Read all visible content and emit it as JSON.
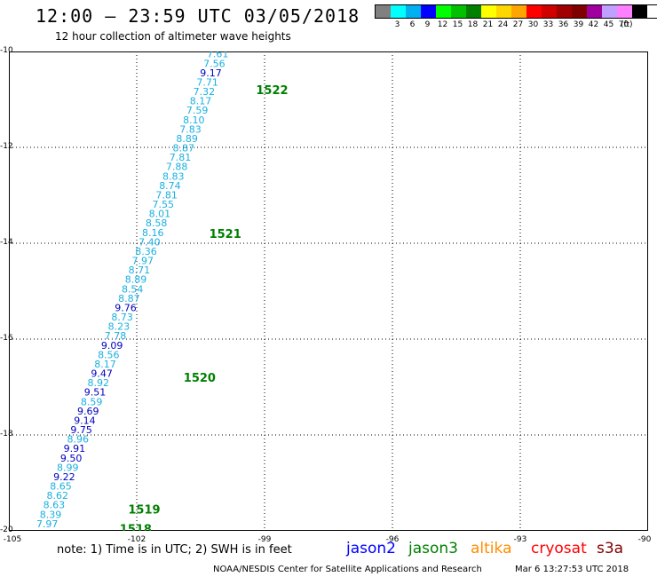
{
  "header": {
    "title": "12:00 – 23:59 UTC 03/05/2018",
    "subtitle": "12 hour collection of altimeter wave heights"
  },
  "color_scale": {
    "unit": "(ft)",
    "bins": [
      {
        "label": "",
        "color": "#808080"
      },
      {
        "label": "3",
        "color": "#00ffff"
      },
      {
        "label": "6",
        "color": "#00b0f0"
      },
      {
        "label": "9",
        "color": "#0000ff"
      },
      {
        "label": "12",
        "color": "#00ff00"
      },
      {
        "label": "15",
        "color": "#00c000"
      },
      {
        "label": "18",
        "color": "#008000"
      },
      {
        "label": "21",
        "color": "#ffff00"
      },
      {
        "label": "24",
        "color": "#ffd700"
      },
      {
        "label": "27",
        "color": "#ffa500"
      },
      {
        "label": "30",
        "color": "#ff0000"
      },
      {
        "label": "33",
        "color": "#d00000"
      },
      {
        "label": "36",
        "color": "#a00000"
      },
      {
        "label": "39",
        "color": "#800000"
      },
      {
        "label": "42",
        "color": "#a000a0"
      },
      {
        "label": "45",
        "color": "#c0a0ff"
      },
      {
        "label": "70",
        "color": "#ff80ff"
      },
      {
        "label": "",
        "color": "#000000"
      }
    ]
  },
  "map": {
    "lon_range": [
      -105,
      -90
    ],
    "lat_range": [
      -20,
      -10
    ],
    "lat_ticks": [
      {
        "value": -10,
        "label": "-10"
      },
      {
        "value": -12,
        "label": "-12"
      },
      {
        "value": -14,
        "label": "-14"
      },
      {
        "value": -16,
        "label": "-16"
      },
      {
        "value": -18,
        "label": "-18"
      },
      {
        "value": -20,
        "label": "-20"
      }
    ],
    "lon_ticks": [
      {
        "value": -105,
        "label": "-105"
      },
      {
        "value": -102,
        "label": "-102"
      },
      {
        "value": -99,
        "label": "-99"
      },
      {
        "value": -96,
        "label": "-96"
      },
      {
        "value": -93,
        "label": "-93"
      },
      {
        "value": -90,
        "label": "-90"
      }
    ],
    "track": {
      "start": {
        "lon": -100.1,
        "lat": -10.05
      },
      "end": {
        "lon": -104.1,
        "lat": -19.85
      },
      "values": [
        "7.61",
        "7.56",
        "9.17",
        "7.71",
        "7.32",
        "8.17",
        "7.59",
        "8.10",
        "7.83",
        "8.89",
        "8.87",
        "7.81",
        "7.88",
        "8.83",
        "8.74",
        "7.81",
        "7.55",
        "8.01",
        "8.58",
        "8.16",
        "7.40",
        "8.36",
        "7.97",
        "8.71",
        "8.89",
        "8.54",
        "8.87",
        "9.76",
        "8.73",
        "8.23",
        "7.78",
        "9.09",
        "8.56",
        "8.17",
        "9.47",
        "8.92",
        "9.51",
        "8.59",
        "9.69",
        "9.14",
        "9.75",
        "8.96",
        "9.91",
        "9.50",
        "8.99",
        "9.22",
        "8.65",
        "8.62",
        "8.63",
        "8.39",
        "7.97"
      ],
      "colors": [
        "#1ab0e0",
        "#1ab0e0",
        "#0000c0",
        "#1ab0e0",
        "#1ab0e0",
        "#1ab0e0",
        "#1ab0e0",
        "#1ab0e0",
        "#1ab0e0",
        "#1ab0e0",
        "#1ab0e0",
        "#1ab0e0",
        "#1ab0e0",
        "#1ab0e0",
        "#1ab0e0",
        "#1ab0e0",
        "#1ab0e0",
        "#1ab0e0",
        "#1ab0e0",
        "#1ab0e0",
        "#1ab0e0",
        "#1ab0e0",
        "#1ab0e0",
        "#1ab0e0",
        "#1ab0e0",
        "#1ab0e0",
        "#1ab0e0",
        "#0000c0",
        "#1ab0e0",
        "#1ab0e0",
        "#1ab0e0",
        "#0000c0",
        "#1ab0e0",
        "#1ab0e0",
        "#0000c0",
        "#1ab0e0",
        "#0000c0",
        "#1ab0e0",
        "#0000c0",
        "#0000c0",
        "#0000c0",
        "#1ab0e0",
        "#0000c0",
        "#0000c0",
        "#1ab0e0",
        "#0000c0",
        "#1ab0e0",
        "#1ab0e0",
        "#1ab0e0",
        "#1ab0e0",
        "#1ab0e0"
      ]
    },
    "time_labels": [
      {
        "text": "1522",
        "lon": -99.2,
        "lat": -10.8
      },
      {
        "text": "1521",
        "lon": -100.3,
        "lat": -13.8
      },
      {
        "text": "1520",
        "lon": -100.9,
        "lat": -16.8
      },
      {
        "text": "1519",
        "lon": -102.2,
        "lat": -19.55
      },
      {
        "text": "1518",
        "lon": -102.4,
        "lat": -19.95
      }
    ],
    "time_label_color": "#008000"
  },
  "footer": {
    "note": "note:  1) Time is in UTC;  2) SWH is in feet",
    "satellites": [
      {
        "name": "jason2",
        "color": "#0000ff"
      },
      {
        "name": "jason3",
        "color": "#008000"
      },
      {
        "name": "altika",
        "color": "#ff8c00"
      },
      {
        "name": "cryosat",
        "color": "#ff0000"
      },
      {
        "name": "s3a",
        "color": "#800000"
      }
    ],
    "credit": "NOAA/NESDIS Center for Satellite Applications and Research",
    "timestamp": "Mar  6 13:27:53 UTC 2018"
  }
}
